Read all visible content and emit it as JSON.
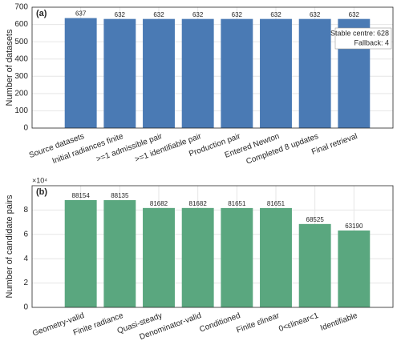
{
  "chart_data": [
    {
      "type": "bar",
      "panel_label": "(a)",
      "ylabel": "Number of datasets",
      "categories": [
        "Source datasets",
        "Initial radiances finite",
        ">=1 admissible pair",
        ">=1 identifiable pair",
        "Production pair",
        "Entered Newton",
        "Completed 8 updates",
        "Final retrieval"
      ],
      "values": [
        637,
        632,
        632,
        632,
        632,
        632,
        632,
        632
      ],
      "color": "#4a7ab4",
      "ylim": [
        0,
        700
      ],
      "yticks": [
        0,
        100,
        200,
        300,
        400,
        500,
        600,
        700
      ],
      "grid": true,
      "annotation": [
        "Stable centre: 628",
        "Fallback: 4"
      ]
    },
    {
      "type": "bar",
      "panel_label": "(b)",
      "ylabel": "Number of candidate pairs",
      "y_multiplier": "×10⁴",
      "categories": [
        "Geometry-valid",
        "Finite radiance",
        "Quasi-steady",
        "Denominator-valid",
        "Conditioned",
        "Finite εlinear",
        "0<εlinear<1",
        "Identifiable"
      ],
      "values": [
        88154,
        88135,
        81682,
        81682,
        81651,
        81651,
        68525,
        63190
      ],
      "color": "#5aa77f",
      "ylim": [
        0,
        100000
      ],
      "yticks": [
        {
          "value": 0,
          "label": "0"
        },
        {
          "value": 20000,
          "label": "2"
        },
        {
          "value": 40000,
          "label": "4"
        },
        {
          "value": 60000,
          "label": "6"
        },
        {
          "value": 80000,
          "label": "8"
        }
      ],
      "grid": true
    }
  ]
}
